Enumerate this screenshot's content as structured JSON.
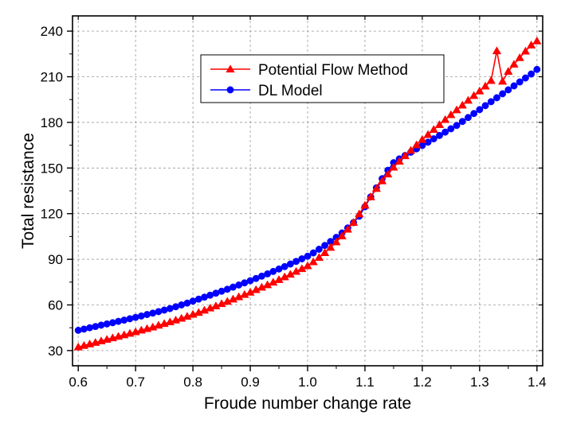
{
  "chart_data": {
    "type": "line",
    "xlabel": "Froude number change rate",
    "ylabel": "Total resistance",
    "xlim": [
      0.59,
      1.41
    ],
    "ylim": [
      20,
      250
    ],
    "xticks": [
      0.6,
      0.7,
      0.8,
      0.9,
      1.0,
      1.1,
      1.2,
      1.3,
      1.4
    ],
    "xtick_labels": [
      "0.6",
      "0.7",
      "0.8",
      "0.9",
      "1.0",
      "1.1",
      "1.2",
      "1.3",
      "1.4"
    ],
    "yticks": [
      30,
      60,
      90,
      120,
      150,
      180,
      210,
      240
    ],
    "ytick_labels": [
      "30",
      "60",
      "90",
      "120",
      "150",
      "180",
      "210",
      "240"
    ],
    "grid": true,
    "grid_style": "dashed",
    "legend_position": "top-right",
    "x": [
      0.6,
      0.61,
      0.62,
      0.63,
      0.64,
      0.65,
      0.66,
      0.67,
      0.68,
      0.69,
      0.7,
      0.71,
      0.72,
      0.73,
      0.74,
      0.75,
      0.76,
      0.77,
      0.78,
      0.79,
      0.8,
      0.81,
      0.82,
      0.83,
      0.84,
      0.85,
      0.86,
      0.87,
      0.88,
      0.89,
      0.9,
      0.91,
      0.92,
      0.93,
      0.94,
      0.95,
      0.96,
      0.97,
      0.98,
      0.99,
      1.0,
      1.01,
      1.02,
      1.03,
      1.04,
      1.05,
      1.06,
      1.07,
      1.08,
      1.09,
      1.1,
      1.11,
      1.12,
      1.13,
      1.14,
      1.15,
      1.16,
      1.17,
      1.18,
      1.19,
      1.2,
      1.21,
      1.22,
      1.23,
      1.24,
      1.25,
      1.26,
      1.27,
      1.28,
      1.29,
      1.3,
      1.31,
      1.32,
      1.33,
      1.34,
      1.35,
      1.36,
      1.37,
      1.38,
      1.39,
      1.4
    ],
    "series": [
      {
        "name": "Potential Flow Method",
        "color": "#ff0000",
        "marker": "triangle",
        "values": [
          32.3,
          33.3,
          34.3,
          35.3,
          36.3,
          37.3,
          38.3,
          39.3,
          40.3,
          41.3,
          42.3,
          43.4,
          44.4,
          45.4,
          46.6,
          47.7,
          48.8,
          50.0,
          51.2,
          52.5,
          53.8,
          55.0,
          56.5,
          57.9,
          59.3,
          60.8,
          62.3,
          63.8,
          65.3,
          66.8,
          68.3,
          70.0,
          71.6,
          73.2,
          74.9,
          76.6,
          78.4,
          80.1,
          82.0,
          83.8,
          85.7,
          88.3,
          91.2,
          94.3,
          97.8,
          101.4,
          105.3,
          109.7,
          114.2,
          119.8,
          125.5,
          131.0,
          136.5,
          141.5,
          146.0,
          150.5,
          154.4,
          158.0,
          161.6,
          165.2,
          168.7,
          172.0,
          175.3,
          178.5,
          181.8,
          185.0,
          188.2,
          191.3,
          194.5,
          197.6,
          200.6,
          203.8,
          207.5,
          227.0,
          207.0,
          213.5,
          218.2,
          222.5,
          226.8,
          230.8,
          233.5
        ]
      },
      {
        "name": "DL Model",
        "color": "#0000ff",
        "marker": "circle",
        "values": [
          43.3,
          44.1,
          45.0,
          45.8,
          46.7,
          47.5,
          48.3,
          49.2,
          50.0,
          50.9,
          51.8,
          52.7,
          53.7,
          54.6,
          55.6,
          56.6,
          57.6,
          58.8,
          60.0,
          61.2,
          62.5,
          63.8,
          65.1,
          66.4,
          67.7,
          69.0,
          70.3,
          71.7,
          73.1,
          74.5,
          75.9,
          77.4,
          78.9,
          80.4,
          82.0,
          83.6,
          85.2,
          86.9,
          88.6,
          90.3,
          92.0,
          94.2,
          96.6,
          99.1,
          101.7,
          104.4,
          107.3,
          110.6,
          114.1,
          118.3,
          124.5,
          131.0,
          137.0,
          143.0,
          148.5,
          153.5,
          156.0,
          158.2,
          160.4,
          162.6,
          164.8,
          167.0,
          169.2,
          171.4,
          173.6,
          175.8,
          178.0,
          180.6,
          183.2,
          185.8,
          188.4,
          191.0,
          193.6,
          196.2,
          198.8,
          201.4,
          204.0,
          206.6,
          209.2,
          211.8,
          214.8
        ]
      }
    ]
  }
}
